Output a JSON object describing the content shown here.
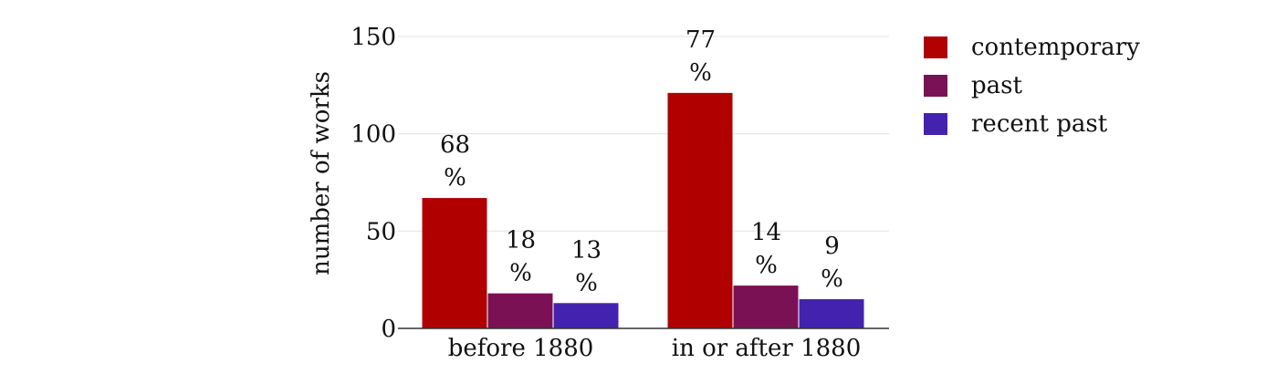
{
  "chart_data": {
    "type": "bar",
    "categories": [
      "before 1880",
      "in or after 1880"
    ],
    "series": [
      {
        "name": "contemporary",
        "color": "#b00000",
        "values": [
          67,
          121
        ],
        "labels": [
          "68 %",
          "77 %"
        ]
      },
      {
        "name": "past",
        "color": "#7b1155",
        "values": [
          18,
          22
        ],
        "labels": [
          "18 %",
          "14 %"
        ]
      },
      {
        "name": "recent past",
        "color": "#4422b0",
        "values": [
          13,
          15
        ],
        "labels": [
          "13 %",
          "9 %"
        ]
      }
    ],
    "ylabel": "number of works",
    "xlabel": "",
    "ylim": [
      0,
      150
    ],
    "yticks": [
      0,
      50,
      100,
      150
    ],
    "grid": true,
    "legend": "right"
  }
}
